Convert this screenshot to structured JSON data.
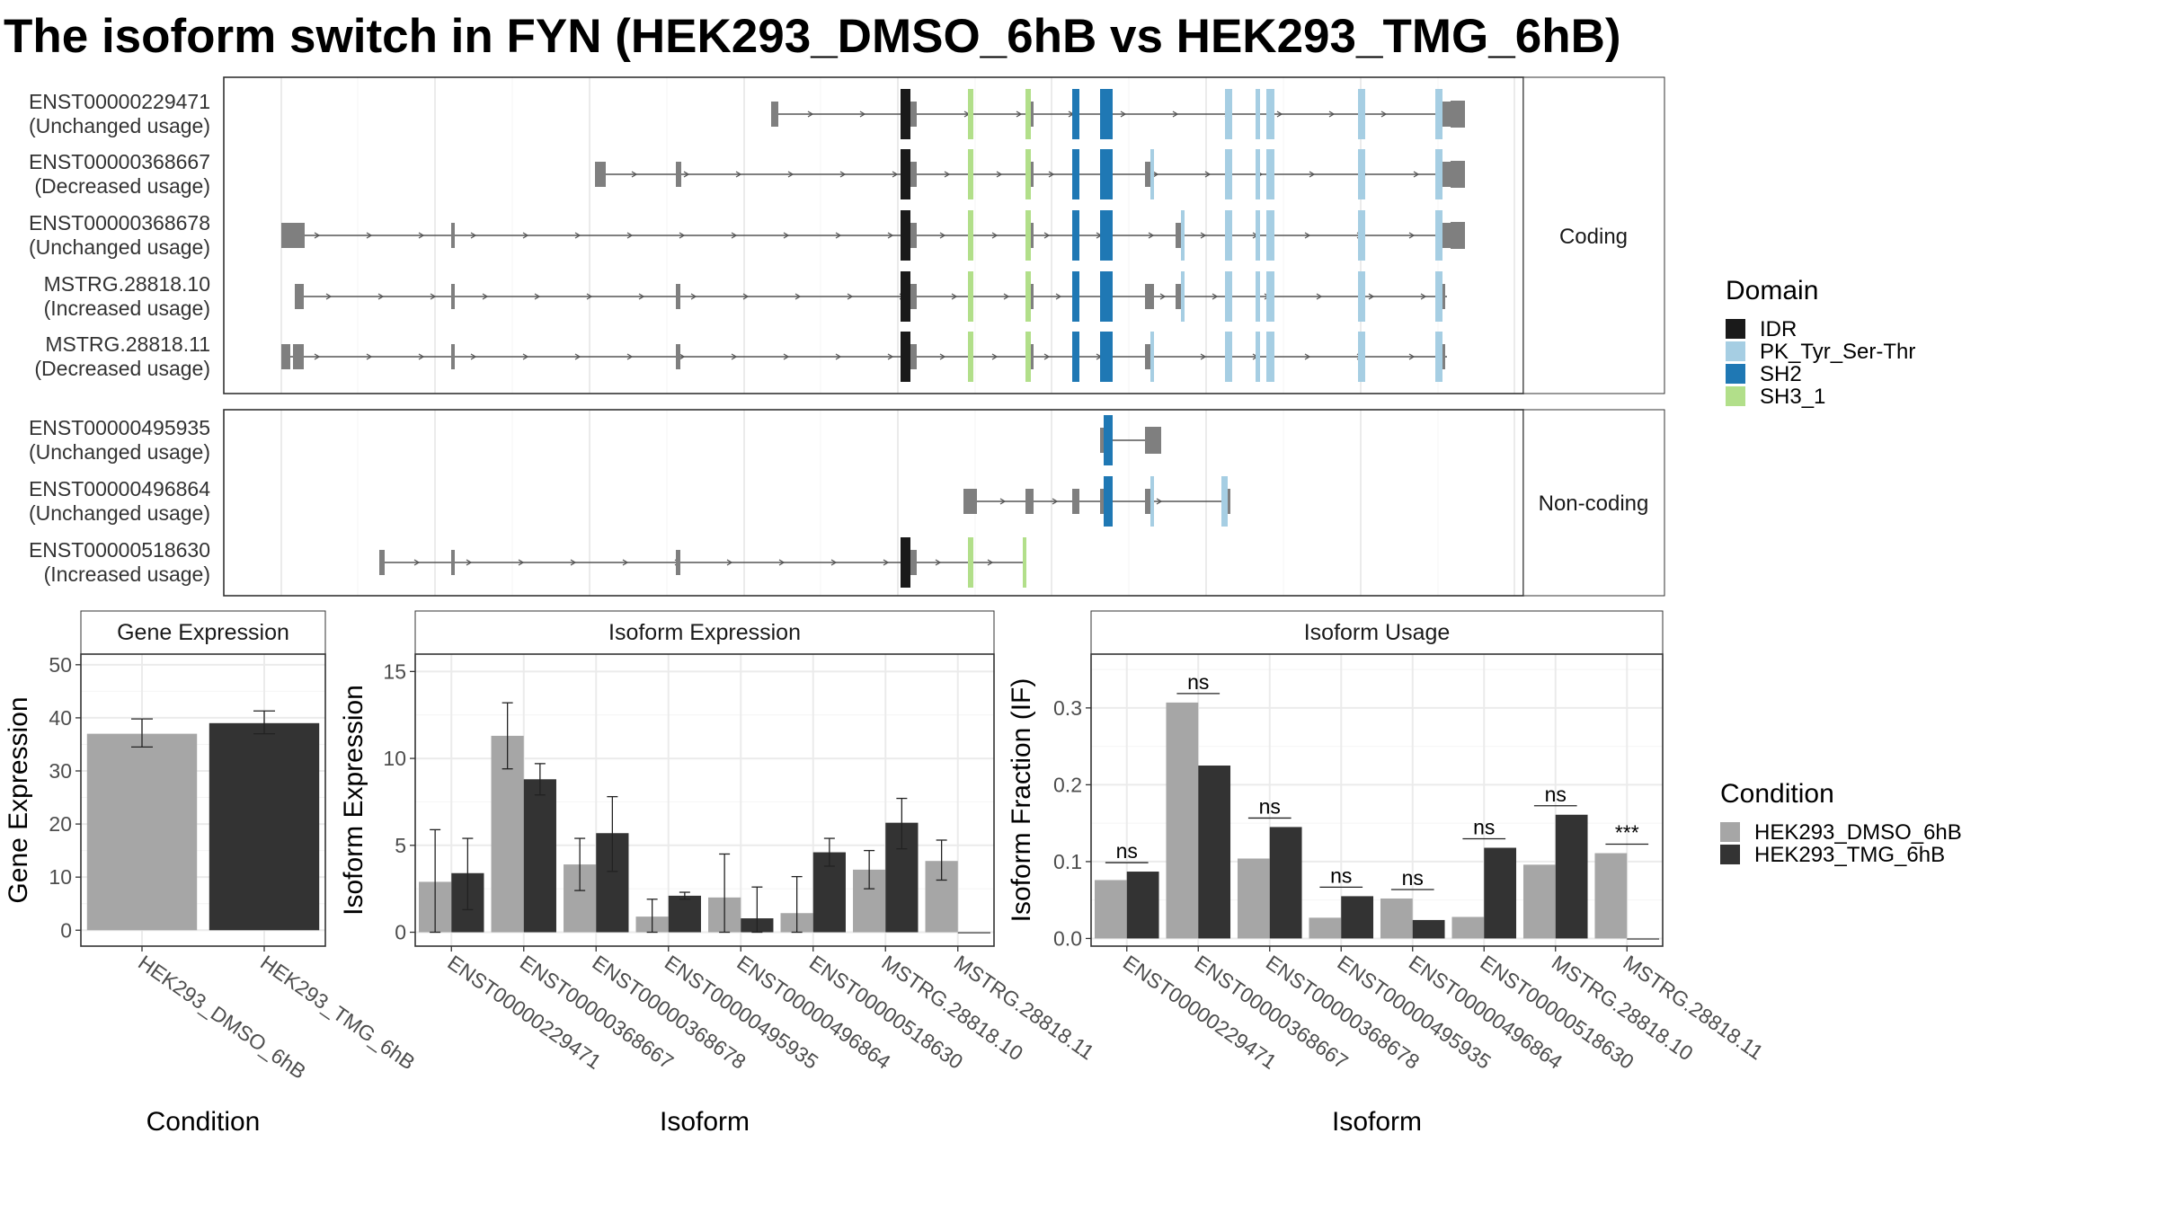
{
  "title": "The isoform switch in FYN (HEK293_DMSO_6hB vs HEK293_TMG_6hB)",
  "colors": {
    "IDR": "#1a1a1a",
    "PK_Tyr_Ser-Thr": "#a6cee3",
    "SH2": "#1f78b4",
    "SH3_1": "#b2df8a",
    "exon": "#7f7f7f",
    "dmso": "#a6a6a6",
    "tmg": "#333333"
  },
  "structure": {
    "coding_label": "Coding",
    "noncoding_label": "Non-coding",
    "coding": [
      {
        "id": "ENST00000229471",
        "usage": "(Unchanged usage)"
      },
      {
        "id": "ENST00000368667",
        "usage": "(Decreased usage)"
      },
      {
        "id": "ENST00000368678",
        "usage": "(Unchanged usage)"
      },
      {
        "id": "MSTRG.28818.10",
        "usage": "(Increased usage)"
      },
      {
        "id": "MSTRG.28818.11",
        "usage": "(Decreased usage)"
      }
    ],
    "noncoding": [
      {
        "id": "ENST00000495935",
        "usage": "(Unchanged usage)"
      },
      {
        "id": "ENST00000496864",
        "usage": "(Unchanged usage)"
      },
      {
        "id": "ENST00000518630",
        "usage": "(Increased usage)"
      }
    ]
  },
  "legend_domain": {
    "title": "Domain",
    "items": [
      "IDR",
      "PK_Tyr_Ser-Thr",
      "SH2",
      "SH3_1"
    ]
  },
  "legend_condition": {
    "title": "Condition",
    "items": [
      "HEK293_DMSO_6hB",
      "HEK293_TMG_6hB"
    ]
  },
  "chart_data": [
    {
      "type": "bar",
      "title": "Gene Expression",
      "xlabel": "Condition",
      "ylabel": "Gene Expression",
      "categories": [
        "HEK293_DMSO_6hB",
        "HEK293_TMG_6hB"
      ],
      "values": [
        37.0,
        39.0
      ],
      "errors": [
        [
          34.5,
          39.8
        ],
        [
          37.0,
          41.3
        ]
      ],
      "ylim": [
        -3,
        52
      ],
      "yticks": [
        0,
        10,
        20,
        30,
        40,
        50
      ],
      "grid": true
    },
    {
      "type": "bar",
      "title": "Isoform Expression",
      "xlabel": "Isoform",
      "ylabel": "Isoform Expression",
      "categories": [
        "ENST00000229471",
        "ENST00000368667",
        "ENST00000368678",
        "ENST00000495935",
        "ENST00000496864",
        "ENST00000518630",
        "MSTRG.28818.10",
        "MSTRG.28818.11"
      ],
      "series": [
        {
          "name": "HEK293_DMSO_6hB",
          "values": [
            2.9,
            11.3,
            3.9,
            0.9,
            2.0,
            1.1,
            3.6,
            4.1
          ],
          "errors": [
            [
              0.0,
              5.9
            ],
            [
              9.4,
              13.2
            ],
            [
              2.4,
              5.4
            ],
            [
              0.0,
              1.9
            ],
            [
              0.0,
              4.5
            ],
            [
              0.0,
              3.2
            ],
            [
              2.5,
              4.7
            ],
            [
              3.0,
              5.3
            ]
          ]
        },
        {
          "name": "HEK293_TMG_6hB",
          "values": [
            3.4,
            8.8,
            5.7,
            2.1,
            0.8,
            4.6,
            6.3,
            0.0
          ],
          "errors": [
            [
              1.3,
              5.4
            ],
            [
              7.9,
              9.7
            ],
            [
              3.5,
              7.8
            ],
            [
              1.9,
              2.3
            ],
            [
              0.0,
              2.6
            ],
            [
              3.8,
              5.4
            ],
            [
              4.8,
              7.7
            ],
            null
          ]
        }
      ],
      "ylim": [
        -0.8,
        16
      ],
      "yticks": [
        0,
        5,
        10,
        15
      ],
      "grid": true
    },
    {
      "type": "bar",
      "title": "Isoform Usage",
      "xlabel": "Isoform",
      "ylabel": "Isoform Fraction (IF)",
      "categories": [
        "ENST00000229471",
        "ENST00000368667",
        "ENST00000368678",
        "ENST00000495935",
        "ENST00000496864",
        "ENST00000518630",
        "MSTRG.28818.10",
        "MSTRG.28818.11"
      ],
      "series": [
        {
          "name": "HEK293_DMSO_6hB",
          "values": [
            0.076,
            0.307,
            0.104,
            0.027,
            0.052,
            0.028,
            0.096,
            0.111
          ]
        },
        {
          "name": "HEK293_TMG_6hB",
          "values": [
            0.087,
            0.225,
            0.145,
            0.055,
            0.024,
            0.118,
            0.161,
            0.0
          ]
        }
      ],
      "annotations": [
        "ns",
        "ns",
        "ns",
        "ns",
        "ns",
        "ns",
        "ns",
        "***"
      ],
      "ylim": [
        -0.01,
        0.37
      ],
      "yticks": [
        0.0,
        0.1,
        0.2,
        0.3
      ],
      "grid": true
    }
  ]
}
